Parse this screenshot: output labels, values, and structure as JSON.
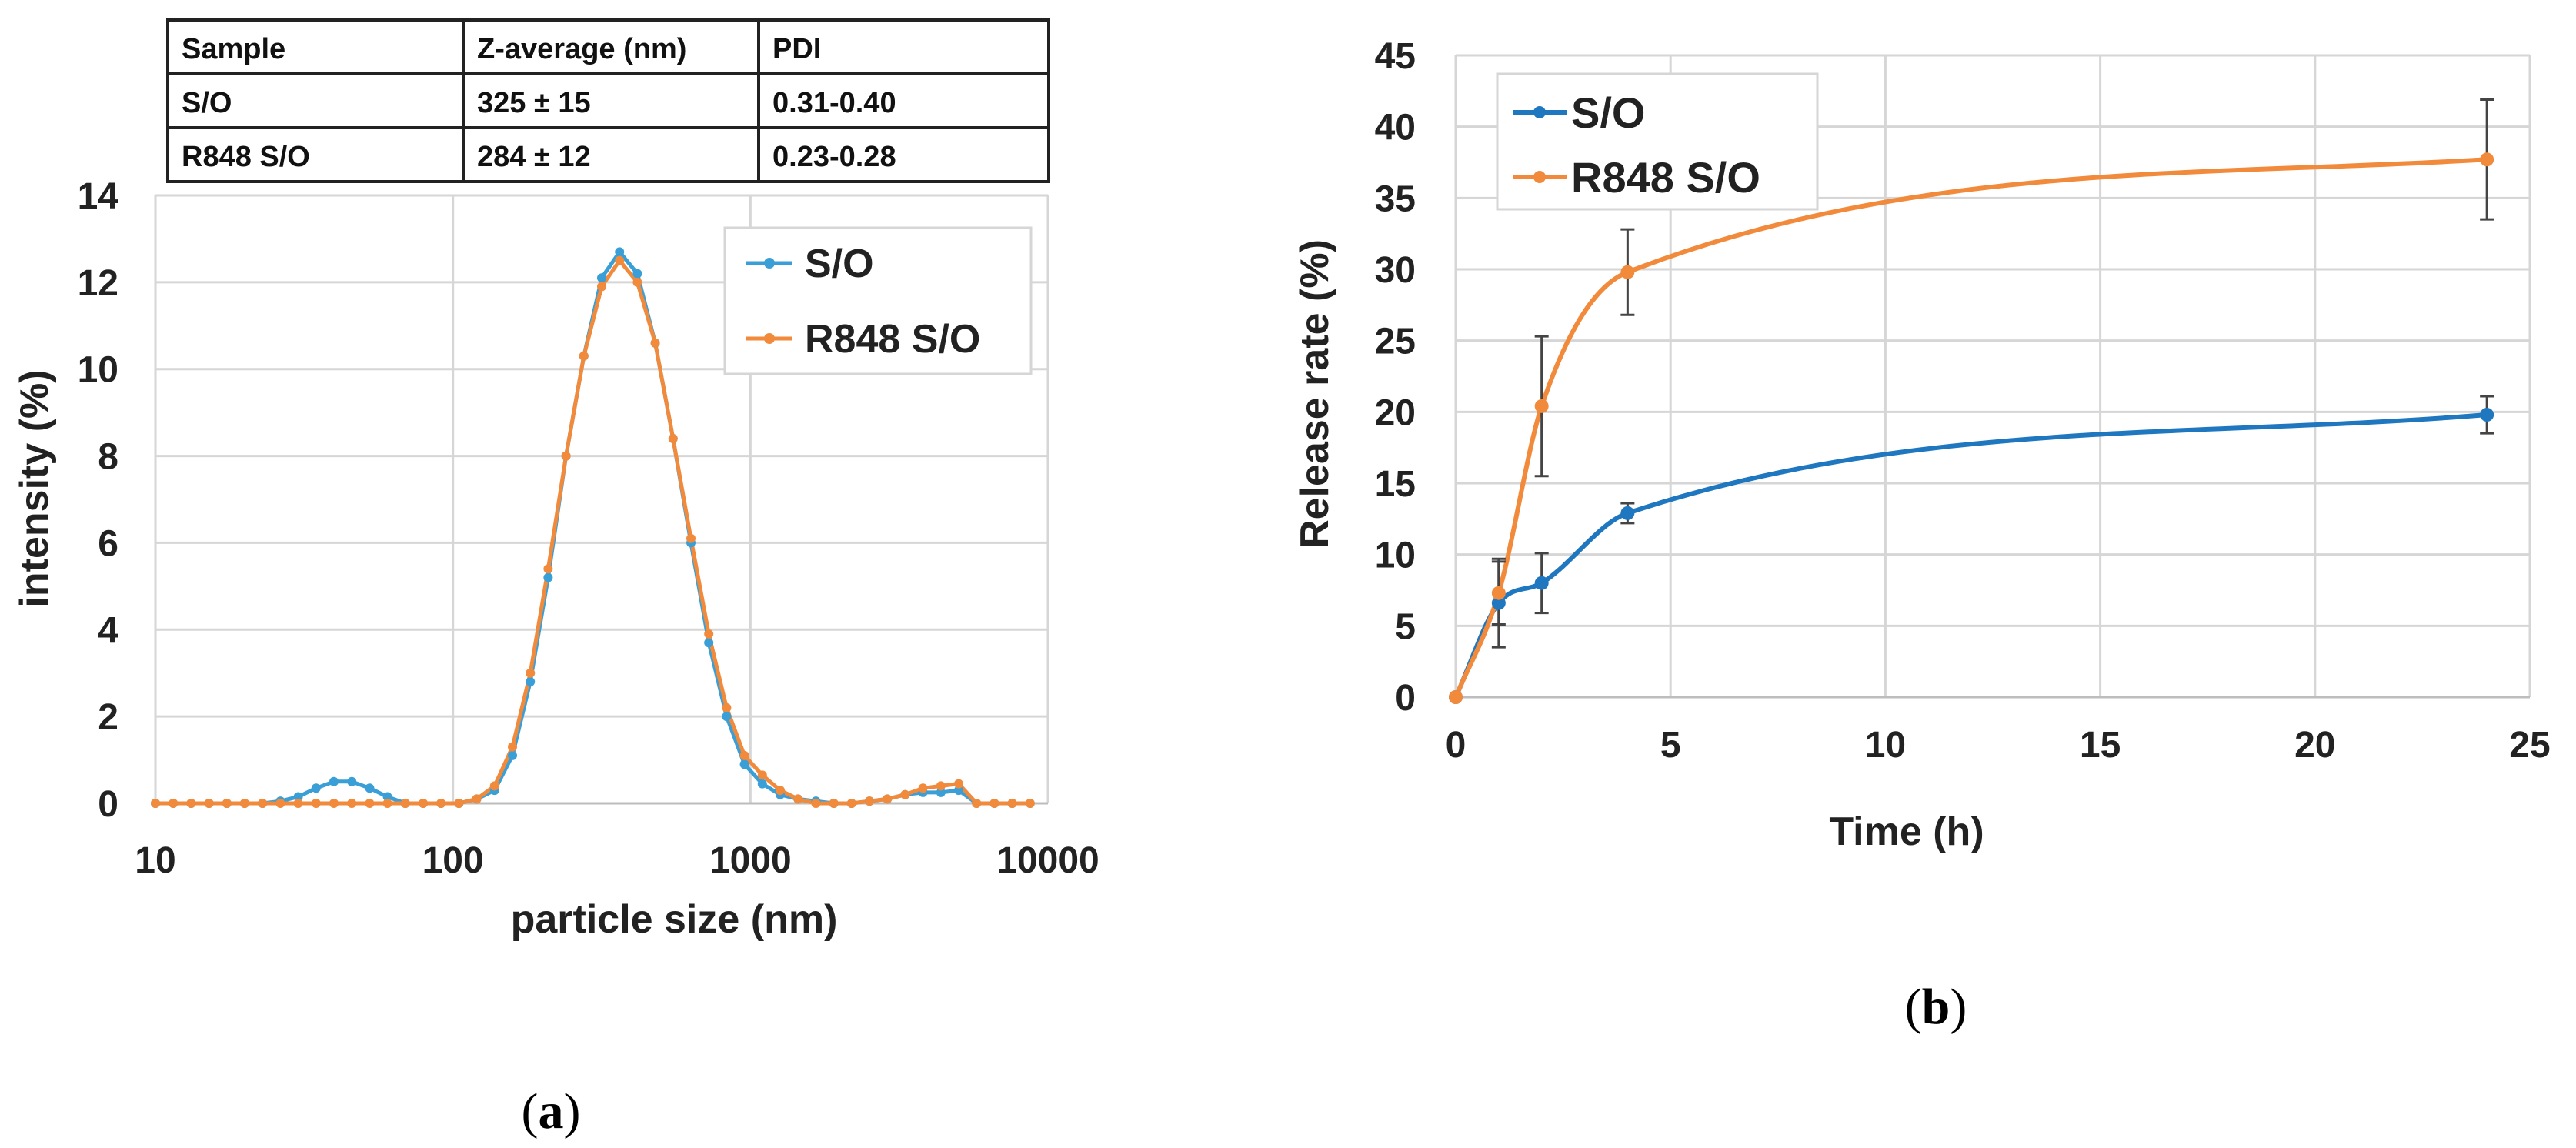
{
  "table": {
    "headers": [
      "Sample",
      "Z-average (nm)",
      "PDI"
    ],
    "rows": [
      [
        "S/O",
        "325 ± 15",
        "0.31-0.40"
      ],
      [
        "R848 S/O",
        "284 ± 12",
        "0.23-0.28"
      ]
    ]
  },
  "colors": {
    "so_a": "#3a9fd6",
    "r848_a": "#f28a3c",
    "so_b": "#1f77c0",
    "r848_b": "#f28a3c",
    "grid": "#d6d6d6",
    "error_bar": "#444444"
  },
  "chart_data": [
    {
      "type": "line",
      "panel": "(a)",
      "title": "",
      "xlabel": "particle size (nm)",
      "ylabel": "intensity (%)",
      "xscale": "log",
      "xlim": [
        10,
        10000
      ],
      "ylim": [
        0,
        14
      ],
      "x_ticks": [
        "10",
        "100",
        "1000",
        "10000"
      ],
      "y_ticks": [
        "0",
        "2",
        "4",
        "6",
        "8",
        "10",
        "12",
        "14"
      ],
      "legend": [
        "S/O",
        "R848 S/O"
      ],
      "legend_position": "top-right",
      "x": [
        10.0,
        11.48,
        13.18,
        15.14,
        17.38,
        19.95,
        22.91,
        26.3,
        30.2,
        34.67,
        39.81,
        45.71,
        52.48,
        60.26,
        69.18,
        79.43,
        91.2,
        104.7,
        120.2,
        138.0,
        158.5,
        182.0,
        208.9,
        239.9,
        275.4,
        316.2,
        363.1,
        416.9,
        478.6,
        549.5,
        631.0,
        724.4,
        831.8,
        955.0,
        1096.5,
        1258.9,
        1445.4,
        1659.6,
        1905.5,
        2187.8,
        2511.9,
        2884.0,
        3311.3,
        3801.9,
        4365.2,
        5011.9,
        5754.4,
        6606.9,
        7585.8,
        8709.6
      ],
      "series": [
        {
          "name": "S/O",
          "values": [
            0,
            0,
            0,
            0,
            0,
            0,
            0,
            0.05,
            0.15,
            0.35,
            0.5,
            0.5,
            0.35,
            0.15,
            0,
            0,
            0,
            0,
            0.1,
            0.3,
            1.1,
            2.8,
            5.2,
            8.0,
            10.3,
            12.1,
            12.7,
            12.2,
            10.6,
            8.4,
            6.0,
            3.7,
            2.0,
            0.9,
            0.45,
            0.2,
            0.1,
            0.05,
            0,
            0,
            0.05,
            0.1,
            0.2,
            0.25,
            0.25,
            0.3,
            0,
            0,
            0,
            0
          ]
        },
        {
          "name": "R848 S/O",
          "values": [
            0,
            0,
            0,
            0,
            0,
            0,
            0,
            0,
            0,
            0,
            0,
            0,
            0,
            0,
            0,
            0,
            0,
            0,
            0.1,
            0.4,
            1.3,
            3.0,
            5.4,
            8.0,
            10.3,
            11.9,
            12.5,
            12.0,
            10.6,
            8.4,
            6.1,
            3.9,
            2.2,
            1.1,
            0.65,
            0.3,
            0.1,
            0,
            0,
            0,
            0.05,
            0.1,
            0.2,
            0.35,
            0.4,
            0.45,
            0,
            0,
            0,
            0
          ]
        }
      ]
    },
    {
      "type": "line",
      "panel": "(b)",
      "title": "",
      "xlabel": "Time (h)",
      "ylabel": "Release rate (%)",
      "xlim": [
        0,
        25
      ],
      "ylim": [
        0,
        45
      ],
      "x_ticks": [
        "0",
        "5",
        "10",
        "15",
        "20",
        "25"
      ],
      "y_ticks": [
        "0",
        "5",
        "10",
        "15",
        "20",
        "25",
        "30",
        "35",
        "40",
        "45"
      ],
      "legend": [
        "S/O",
        "R848 S/O"
      ],
      "legend_position": "top-left",
      "x": [
        0,
        1,
        2,
        4,
        24
      ],
      "series": [
        {
          "name": "S/O",
          "values": [
            0,
            6.6,
            8.0,
            12.9,
            19.8
          ],
          "errors": [
            0,
            3.1,
            2.1,
            0.7,
            1.3
          ]
        },
        {
          "name": "R848 S/O",
          "values": [
            0,
            7.3,
            20.4,
            29.8,
            37.7
          ],
          "errors": [
            0,
            2.2,
            4.9,
            3.0,
            4.2
          ]
        }
      ]
    }
  ],
  "captions": {
    "a_open": "(",
    "a_letter": "a",
    "a_close": ")",
    "b_open": "(",
    "b_letter": "b",
    "b_close": ")"
  }
}
